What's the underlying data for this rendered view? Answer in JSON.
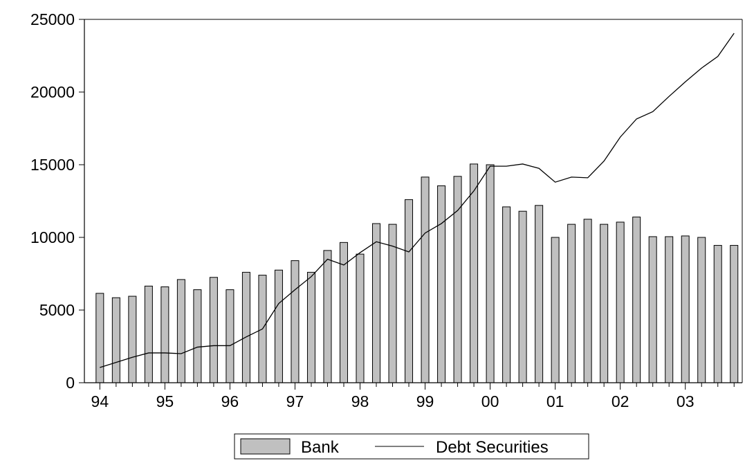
{
  "chart_data": {
    "type": "bar+line",
    "title": "",
    "xlabel": "",
    "ylabel": "",
    "ylim": [
      0,
      25000
    ],
    "yticks": [
      "0",
      "5000",
      "10000",
      "15000",
      "20000",
      "25000"
    ],
    "xticks": [
      "94",
      "95",
      "96",
      "97",
      "98",
      "99",
      "00",
      "01",
      "02",
      "03"
    ],
    "grid": false,
    "legend": "bottom-center",
    "periods": [
      "1994Q1",
      "1994Q2",
      "1994Q3",
      "1994Q4",
      "1995Q1",
      "1995Q2",
      "1995Q3",
      "1995Q4",
      "1996Q1",
      "1996Q2",
      "1996Q3",
      "1996Q4",
      "1997Q1",
      "1997Q2",
      "1997Q3",
      "1997Q4",
      "1998Q1",
      "1998Q2",
      "1998Q3",
      "1998Q4",
      "1999Q1",
      "1999Q2",
      "1999Q3",
      "1999Q4",
      "2000Q1",
      "2000Q2",
      "2000Q3",
      "2000Q4",
      "2001Q1",
      "2001Q2",
      "2001Q3",
      "2001Q4",
      "2002Q1",
      "2002Q2",
      "2002Q3",
      "2002Q4",
      "2003Q1",
      "2003Q2",
      "2003Q3",
      "2003Q4"
    ],
    "series": [
      {
        "name": "Bank",
        "kind": "bar",
        "color": "#c0c0c0",
        "values": [
          6150,
          5850,
          5950,
          6650,
          6600,
          7100,
          6400,
          7250,
          6400,
          7600,
          7400,
          7750,
          8400,
          7600,
          9100,
          9650,
          8850,
          10950,
          10900,
          12600,
          14150,
          13550,
          14200,
          15050,
          15000,
          12100,
          11800,
          12200,
          10000,
          10900,
          11250,
          10900,
          11050,
          11400,
          10050,
          10050,
          10100,
          10000,
          9450,
          9450
        ]
      },
      {
        "name": "Debt Securities",
        "kind": "line",
        "color": "#000000",
        "values": [
          1050,
          1400,
          1750,
          2050,
          2050,
          2000,
          2450,
          2550,
          2550,
          3150,
          3700,
          5450,
          6400,
          7300,
          8500,
          8100,
          8950,
          9700,
          9400,
          9000,
          10300,
          10950,
          11850,
          13200,
          14900,
          14900,
          15050,
          14750,
          13800,
          14150,
          14100,
          15250,
          16900,
          18150,
          18650,
          19700,
          20700,
          21650,
          22450,
          24050
        ]
      }
    ]
  }
}
